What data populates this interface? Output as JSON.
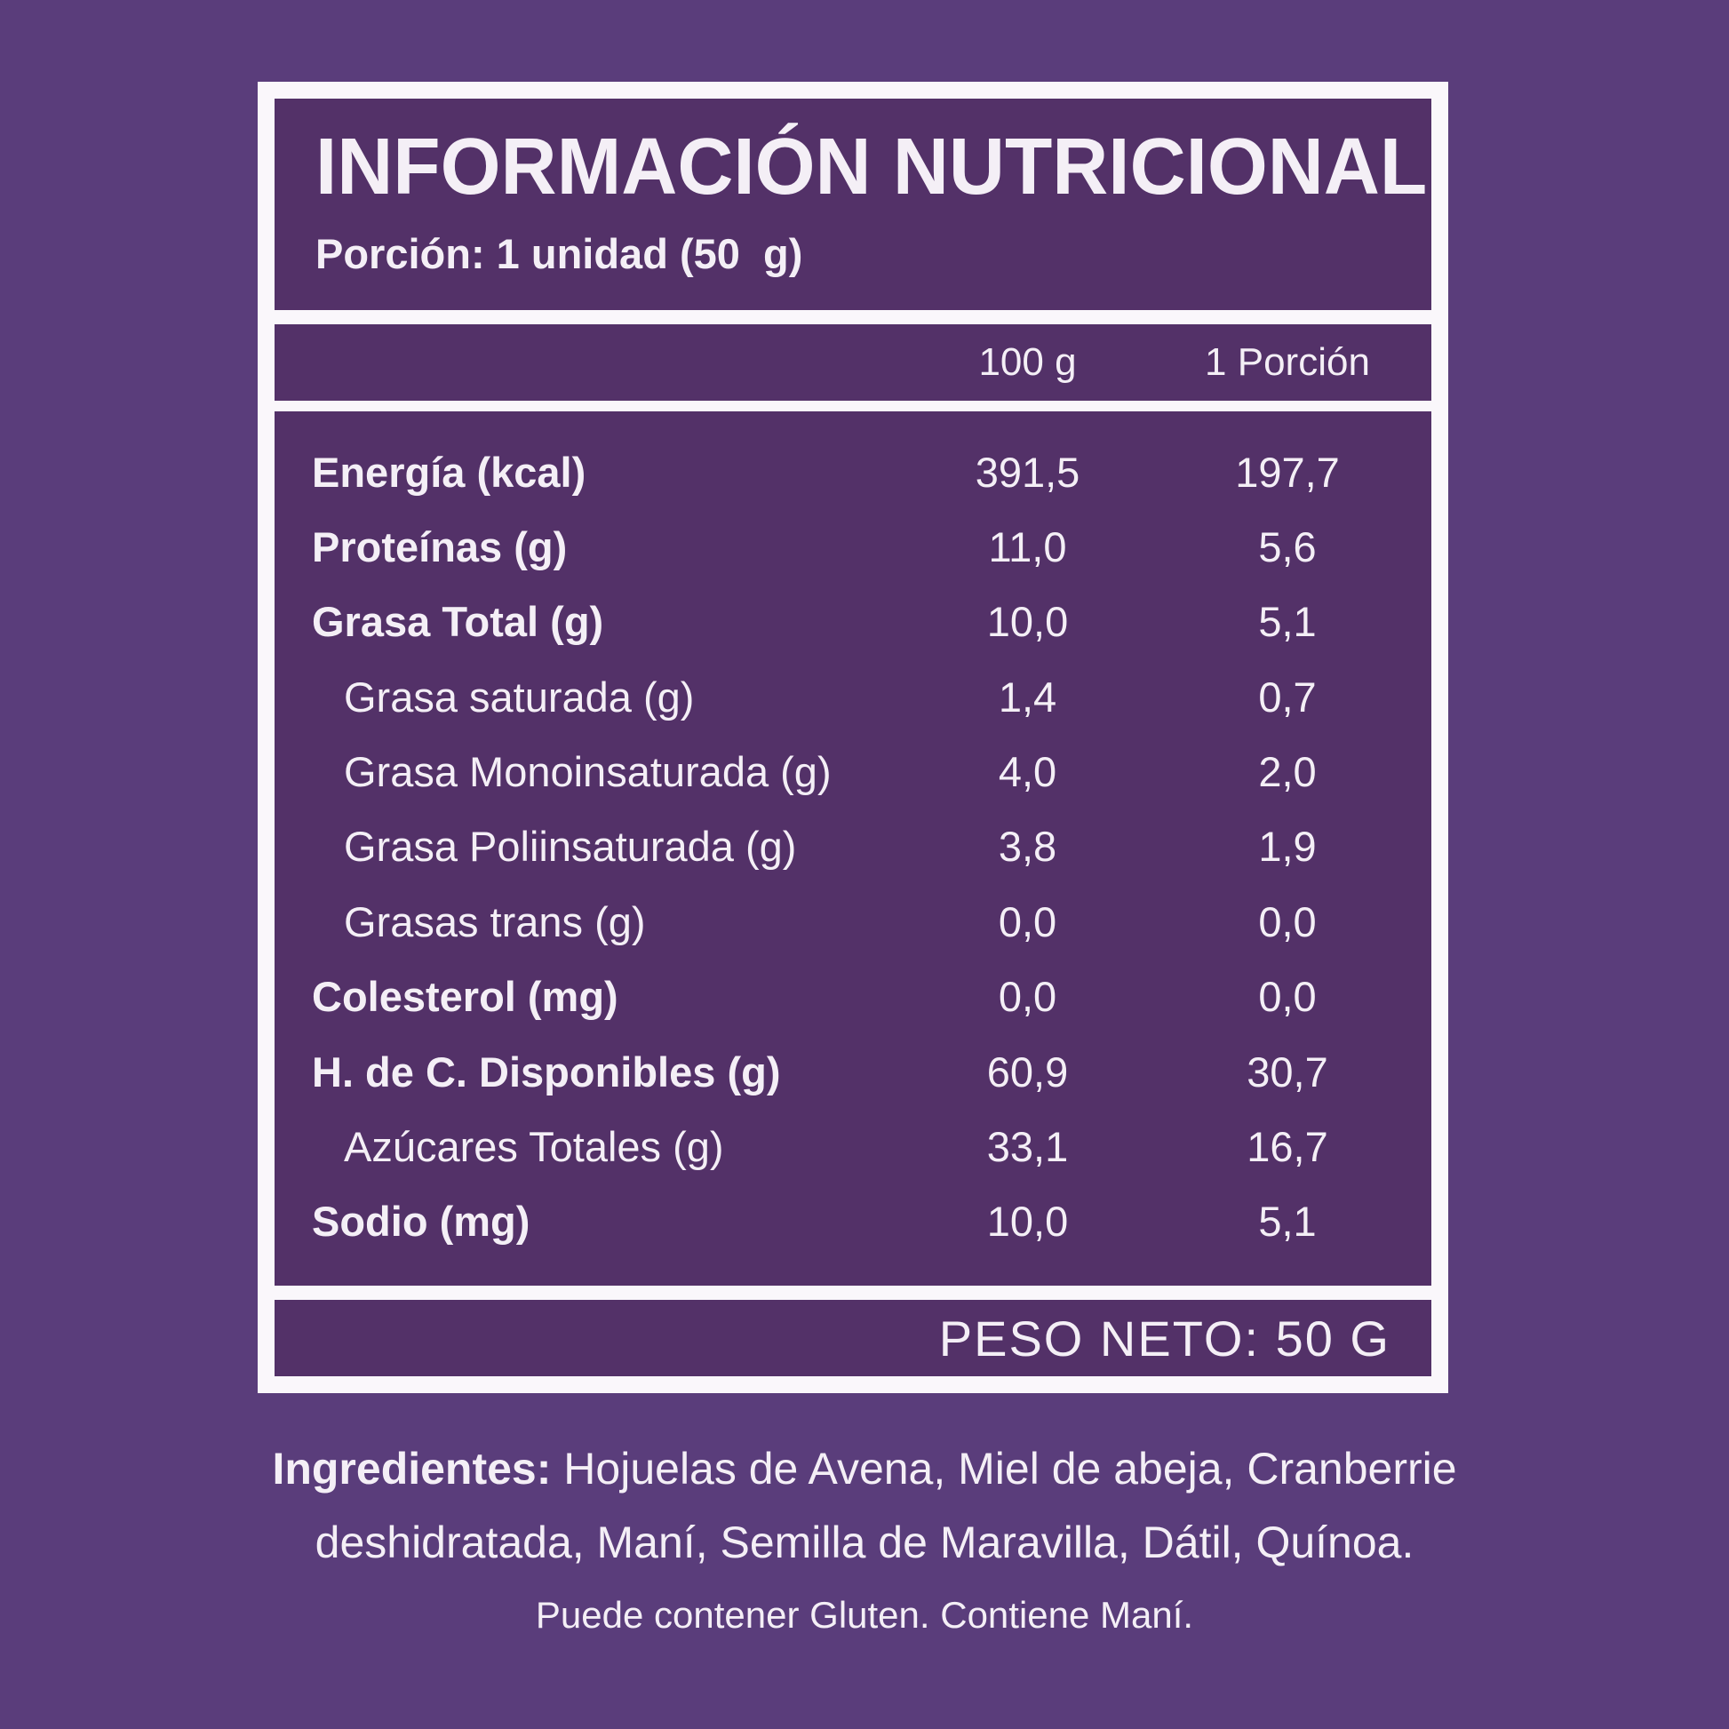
{
  "colors": {
    "background": "#5a3d7b",
    "panel": "#533168",
    "border": "#faf7fb",
    "text": "#f4eff6"
  },
  "label": {
    "title": "INFORMACIÓN NUTRICIONAL",
    "serving": "Porción: 1 unidad (50  g)",
    "columns": {
      "per100": "100 g",
      "portion": "1 Porción"
    },
    "rows": [
      {
        "name": "Energía (kcal)",
        "per100": "391,5",
        "portion": "197,7"
      },
      {
        "name": "Proteínas (g)",
        "per100": "11,0",
        "portion": "5,6"
      },
      {
        "name": "Grasa Total (g)",
        "per100": "10,0",
        "portion": "5,1"
      },
      {
        "name": "Grasa saturada (g)",
        "per100": "1,4",
        "portion": "0,7"
      },
      {
        "name": "Grasa Monoinsaturada (g)",
        "per100": "4,0",
        "portion": "2,0"
      },
      {
        "name": "Grasa Poliinsaturada (g)",
        "per100": "3,8",
        "portion": "1,9"
      },
      {
        "name": "Grasas trans (g)",
        "per100": "0,0",
        "portion": "0,0"
      },
      {
        "name": "Colesterol (mg)",
        "per100": "0,0",
        "portion": "0,0"
      },
      {
        "name": "H. de C. Disponibles (g)",
        "per100": "60,9",
        "portion": "30,7"
      },
      {
        "name": "Azúcares Totales (g)",
        "per100": "33,1",
        "portion": "16,7"
      },
      {
        "name": "Sodio (mg)",
        "per100": "10,0",
        "portion": "5,1"
      }
    ],
    "net_weight": "PESO NETO: 50 G"
  },
  "footer": {
    "ingredients_label": "Ingredientes:",
    "ingredients_line1": " Hojuelas de Avena, Miel de abeja, Cranberrie",
    "ingredients_line2": "deshidratada, Maní, Semilla de Maravilla, Dátil, Quínoa.",
    "allergen": "Puede contener Gluten. Contiene Maní."
  }
}
